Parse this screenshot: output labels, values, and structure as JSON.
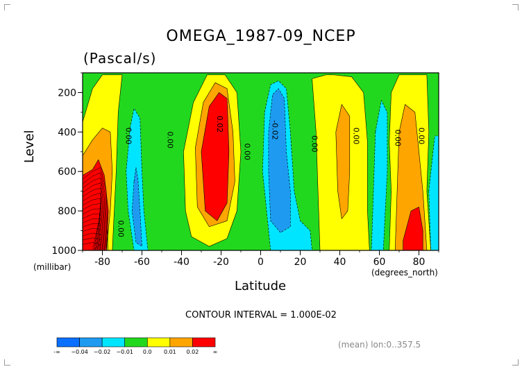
{
  "title": "OMEGA_1987-09_NCEP",
  "subtitle": "(Pascal/s)",
  "footnote": "(mean) lon:0..357.5",
  "contour_interval_text": "CONTOUR INTERVAL = 1.000E-02",
  "colors": {
    "c1": "#0b6fff",
    "c2": "#1e9bf0",
    "c3": "#00e5ff",
    "c4": "#22d81e",
    "c5": "#ffff00",
    "c6": "#ffa500",
    "c7": "#ff0000"
  },
  "chart_data": {
    "type": "heatmap",
    "title": "OMEGA_1987-09_NCEP",
    "units": "(Pascal/s)",
    "xlabel": "Latitude",
    "ylabel": "Level",
    "x_unit": "(degrees_north)",
    "y_unit": "(millibar)",
    "xlim": [
      -90,
      90
    ],
    "ylim": [
      1000,
      100
    ],
    "x_ticks": [
      -80,
      -60,
      -40,
      -20,
      0,
      20,
      40,
      60,
      80
    ],
    "y_ticks": [
      200,
      400,
      600,
      800,
      1000
    ],
    "contour_interval": 0.01,
    "colorbar": {
      "bounds": [
        "-∞",
        "−0.04",
        "−0.02",
        "−0.01",
        "0.0",
        "0.01",
        "0.02",
        "∞"
      ],
      "colors": [
        "#0b6fff",
        "#1e9bf0",
        "#00e5ff",
        "#22d81e",
        "#ffff00",
        "#ffa500",
        "#ff0000"
      ]
    },
    "contour_labels": [
      {
        "text": "0.00",
        "x": -68,
        "p": 420
      },
      {
        "text": "0.00",
        "x": -47,
        "p": 440
      },
      {
        "text": "0.02",
        "x": -22,
        "p": 360
      },
      {
        "text": "0.00",
        "x": -8,
        "p": 500
      },
      {
        "text": "-0.02",
        "x": 6,
        "p": 390
      },
      {
        "text": "0.00",
        "x": 26,
        "p": 460
      },
      {
        "text": "0.00",
        "x": 47,
        "p": 420
      },
      {
        "text": "0.00",
        "x": 68,
        "p": 430
      },
      {
        "text": "0.00",
        "x": 80,
        "p": 420
      },
      {
        "text": "0.00",
        "x": -72,
        "p": 890
      }
    ],
    "regions": [
      {
        "level": 0.005,
        "x": -90,
        "p0": 100,
        "p1": 1000,
        "pts": [
          [
            -90,
            350
          ],
          [
            -85,
            180
          ],
          [
            -80,
            110
          ],
          [
            -70,
            110
          ],
          [
            -72,
            300
          ],
          [
            -73,
            600
          ],
          [
            -74,
            800
          ],
          [
            -75,
            1000
          ],
          [
            -90,
            1000
          ]
        ]
      },
      {
        "level": 0.015,
        "x": -90,
        "p0": 250,
        "p1": 1000,
        "pts": [
          [
            -90,
            520
          ],
          [
            -85,
            440
          ],
          [
            -80,
            380
          ],
          [
            -76,
            400
          ],
          [
            -75,
            600
          ],
          [
            -76,
            800
          ],
          [
            -78,
            1000
          ],
          [
            -90,
            1000
          ]
        ]
      },
      {
        "level": 0.025,
        "x": -90,
        "p0": 540,
        "p1": 1000,
        "pts": [
          [
            -90,
            620
          ],
          [
            -85,
            590
          ],
          [
            -82,
            540
          ],
          [
            -79,
            620
          ],
          [
            -77,
            800
          ],
          [
            -78,
            1000
          ],
          [
            -90,
            1000
          ]
        ]
      },
      {
        "level": -0.005,
        "x": -65,
        "p0": 280,
        "p1": 1000,
        "pts": [
          [
            -66,
            380
          ],
          [
            -64,
            280
          ],
          [
            -61,
            330
          ],
          [
            -60,
            600
          ],
          [
            -59,
            800
          ],
          [
            -57,
            1000
          ],
          [
            -64,
            1000
          ],
          [
            -67,
            800
          ],
          [
            -68,
            600
          ]
        ]
      },
      {
        "level": -0.015,
        "x": -63,
        "p0": 580,
        "p1": 980,
        "pts": [
          [
            -64,
            650
          ],
          [
            -63,
            580
          ],
          [
            -62,
            640
          ],
          [
            -61,
            800
          ],
          [
            -60,
            980
          ],
          [
            -63,
            960
          ],
          [
            -65,
            800
          ]
        ]
      },
      {
        "level": 0.005,
        "x": -22,
        "p0": 100,
        "p1": 980,
        "pts": [
          [
            -39,
            500
          ],
          [
            -34,
            250
          ],
          [
            -27,
            110
          ],
          [
            -18,
            110
          ],
          [
            -12,
            200
          ],
          [
            -10,
            500
          ],
          [
            -12,
            800
          ],
          [
            -17,
            940
          ],
          [
            -26,
            980
          ],
          [
            -35,
            930
          ],
          [
            -38,
            800
          ]
        ]
      },
      {
        "level": 0.015,
        "x": -22,
        "p0": 150,
        "p1": 880,
        "pts": [
          [
            -33,
            480
          ],
          [
            -29,
            250
          ],
          [
            -23,
            150
          ],
          [
            -17,
            180
          ],
          [
            -14,
            400
          ],
          [
            -13,
            650
          ],
          [
            -17,
            850
          ],
          [
            -26,
            880
          ],
          [
            -32,
            780
          ]
        ]
      },
      {
        "level": 0.025,
        "x": -22,
        "p0": 200,
        "p1": 850,
        "pts": [
          [
            -30,
            500
          ],
          [
            -26,
            270
          ],
          [
            -21,
            200
          ],
          [
            -17,
            230
          ],
          [
            -16,
            500
          ],
          [
            -17,
            760
          ],
          [
            -22,
            850
          ],
          [
            -28,
            800
          ]
        ]
      },
      {
        "level": -0.005,
        "x": 9,
        "p0": 140,
        "p1": 1000,
        "pts": [
          [
            2,
            300
          ],
          [
            5,
            160
          ],
          [
            9,
            140
          ],
          [
            13,
            180
          ],
          [
            15,
            400
          ],
          [
            17,
            700
          ],
          [
            20,
            850
          ],
          [
            25,
            900
          ],
          [
            26,
            1000
          ],
          [
            5,
            1000
          ],
          [
            3,
            800
          ],
          [
            1,
            600
          ]
        ]
      },
      {
        "level": -0.015,
        "x": 8,
        "p0": 180,
        "p1": 910,
        "pts": [
          [
            4,
            400
          ],
          [
            6,
            210
          ],
          [
            9,
            180
          ],
          [
            12,
            230
          ],
          [
            13,
            500
          ],
          [
            15,
            700
          ],
          [
            15,
            880
          ],
          [
            10,
            910
          ],
          [
            5,
            850
          ],
          [
            4,
            600
          ]
        ]
      },
      {
        "level": 0.005,
        "x": 35,
        "p0": 100,
        "p1": 1000,
        "pts": [
          [
            26,
            130
          ],
          [
            33,
            110
          ],
          [
            37,
            110
          ],
          [
            46,
            120
          ],
          [
            52,
            200
          ],
          [
            54,
            450
          ],
          [
            54,
            800
          ],
          [
            55,
            1000
          ],
          [
            30,
            1000
          ],
          [
            29,
            700
          ],
          [
            28,
            400
          ]
        ]
      },
      {
        "level": 0.015,
        "x": 40,
        "p0": 260,
        "p1": 840,
        "pts": [
          [
            38,
            400
          ],
          [
            41,
            260
          ],
          [
            45,
            320
          ],
          [
            45,
            600
          ],
          [
            44,
            800
          ],
          [
            41,
            840
          ],
          [
            39,
            700
          ]
        ]
      },
      {
        "level": -0.005,
        "x": 62,
        "p0": 240,
        "p1": 1000,
        "pts": [
          [
            58,
            400
          ],
          [
            61,
            240
          ],
          [
            64,
            300
          ],
          [
            64,
            600
          ],
          [
            63,
            800
          ],
          [
            62,
            1000
          ],
          [
            56,
            1000
          ],
          [
            57,
            700
          ]
        ]
      },
      {
        "level": -0.005,
        "x": 88,
        "p0": 420,
        "p1": 1000,
        "pts": [
          [
            85,
            700
          ],
          [
            88,
            420
          ],
          [
            90,
            420
          ],
          [
            90,
            1000
          ],
          [
            86,
            1000
          ]
        ]
      },
      {
        "level": 0.005,
        "x": 75,
        "p0": 100,
        "p1": 1000,
        "pts": [
          [
            66,
            200
          ],
          [
            70,
            110
          ],
          [
            76,
            110
          ],
          [
            84,
            110
          ],
          [
            85,
            400
          ],
          [
            84,
            700
          ],
          [
            86,
            1000
          ],
          [
            65,
            1000
          ],
          [
            66,
            700
          ],
          [
            65,
            450
          ]
        ]
      },
      {
        "level": 0.015,
        "x": 76,
        "p0": 250,
        "p1": 1000,
        "pts": [
          [
            70,
            400
          ],
          [
            73,
            260
          ],
          [
            78,
            300
          ],
          [
            80,
            500
          ],
          [
            82,
            700
          ],
          [
            84,
            1000
          ],
          [
            68,
            1000
          ],
          [
            69,
            700
          ]
        ]
      },
      {
        "level": 0.025,
        "x": 78,
        "p0": 780,
        "p1": 1000,
        "pts": [
          [
            72,
            950
          ],
          [
            76,
            800
          ],
          [
            80,
            780
          ],
          [
            82,
            900
          ],
          [
            82,
            1000
          ],
          [
            72,
            1000
          ]
        ]
      }
    ]
  }
}
